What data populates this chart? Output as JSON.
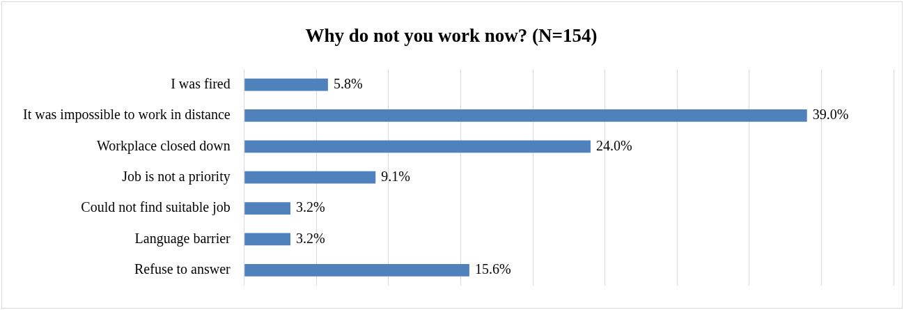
{
  "chart_data": {
    "type": "bar",
    "orientation": "horizontal",
    "title": "Why do not you work now? (N=154)",
    "categories": [
      "I was fired",
      "It was impossible to work in distance",
      "Workplace closed down",
      "Job is not a priority",
      "Could not find suitable job",
      "Language barrier",
      "Refuse to answer"
    ],
    "values": [
      5.8,
      39.0,
      24.0,
      9.1,
      3.2,
      3.2,
      15.6
    ],
    "value_labels": [
      "5.8%",
      "39.0%",
      "24.0%",
      "9.1%",
      "3.2%",
      "3.2%",
      "15.6%"
    ],
    "color": "#4f81bd",
    "xlim": [
      0,
      45
    ],
    "xticks": [
      {
        "value": 0,
        "label": null
      },
      {
        "value": 5,
        "label": null
      },
      {
        "value": 10,
        "label": null
      },
      {
        "value": 15,
        "label": null
      },
      {
        "value": 20,
        "label": null
      },
      {
        "value": 25,
        "label": null
      },
      {
        "value": 30,
        "label": null
      },
      {
        "value": 35,
        "label": null
      },
      {
        "value": 40,
        "label": null
      },
      {
        "value": 45,
        "label": null
      }
    ],
    "grid": "x",
    "tick_labels": "y",
    "legend": false
  }
}
